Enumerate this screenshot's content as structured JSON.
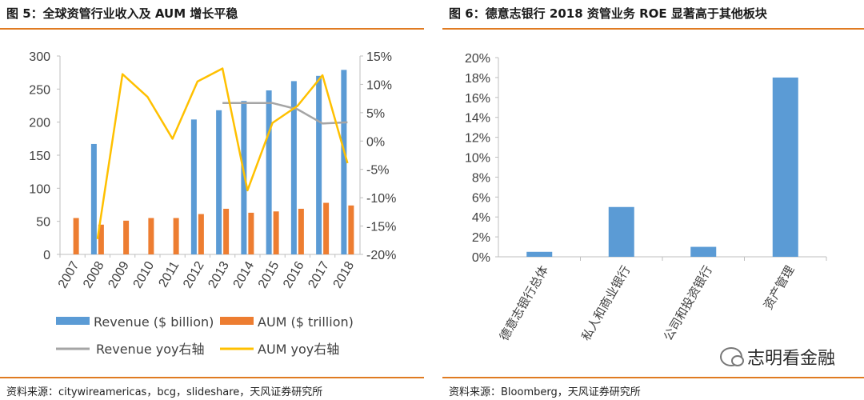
{
  "left": {
    "title": "图 5：全球资管行业收入及 AUM 增长平稳",
    "source": "资料来源：citywireamericas，bcg，slideshare，天风证券研究所"
  },
  "right": {
    "title": "图 6：德意志银行 2018 资管业务 ROE 显著高于其他板块",
    "source": "资料来源：Bloomberg，天风证券研究所"
  },
  "watermark": "志明看金融",
  "colors": {
    "blue": "#5b9bd5",
    "orange": "#ed7d31",
    "gray": "#a5a5a5",
    "yellow": "#ffc000",
    "rule": "#e07b22"
  },
  "chart_data": [
    {
      "type": "bar",
      "categories": [
        "2007",
        "2008",
        "2009",
        "2010",
        "2011",
        "2012",
        "2013",
        "2014",
        "2015",
        "2016",
        "2017",
        "2018"
      ],
      "ylim": [
        0,
        300
      ],
      "yticks": [
        0,
        50,
        100,
        150,
        200,
        250,
        300
      ],
      "ylim_right": [
        -20,
        15
      ],
      "yticks_right": [
        "-20%",
        "-15%",
        "-10%",
        "-5%",
        "0%",
        "5%",
        "10%",
        "15%"
      ],
      "yticks_right_values": [
        -20,
        -15,
        -10,
        -5,
        0,
        5,
        10,
        15
      ],
      "grid": false,
      "legend_position": "bottom",
      "series": [
        {
          "name": "Revenue ($ billion)",
          "type": "bar",
          "axis": "left",
          "values": [
            null,
            167,
            null,
            null,
            null,
            204,
            218,
            232,
            248,
            262,
            270,
            279
          ]
        },
        {
          "name": "AUM ($ trillion)",
          "type": "bar",
          "axis": "left",
          "values": [
            55,
            45,
            51,
            55,
            55,
            61,
            69,
            63,
            65,
            69,
            78,
            74
          ]
        },
        {
          "name": "Revenue yoy右轴",
          "type": "line",
          "axis": "right",
          "values": [
            null,
            null,
            null,
            null,
            null,
            null,
            6.7,
            6.7,
            6.7,
            5.6,
            3.1,
            3.3
          ]
        },
        {
          "name": "AUM yoy右轴",
          "type": "line",
          "axis": "right",
          "values": [
            null,
            -17.3,
            11.8,
            7.8,
            0.4,
            10.5,
            12.8,
            -8.7,
            3.2,
            6.2,
            11.6,
            -3.9
          ]
        }
      ]
    },
    {
      "type": "bar",
      "categories": [
        "德意志银行总体",
        "私人和商业银行",
        "公司和投资银行",
        "资产管理"
      ],
      "values": [
        0.5,
        5,
        1,
        18
      ],
      "ylim": [
        0,
        20
      ],
      "yticks": [
        "0%",
        "2%",
        "4%",
        "6%",
        "8%",
        "10%",
        "12%",
        "14%",
        "16%",
        "18%",
        "20%"
      ],
      "yticks_values": [
        0,
        2,
        4,
        6,
        8,
        10,
        12,
        14,
        16,
        18,
        20
      ],
      "grid": false
    }
  ]
}
